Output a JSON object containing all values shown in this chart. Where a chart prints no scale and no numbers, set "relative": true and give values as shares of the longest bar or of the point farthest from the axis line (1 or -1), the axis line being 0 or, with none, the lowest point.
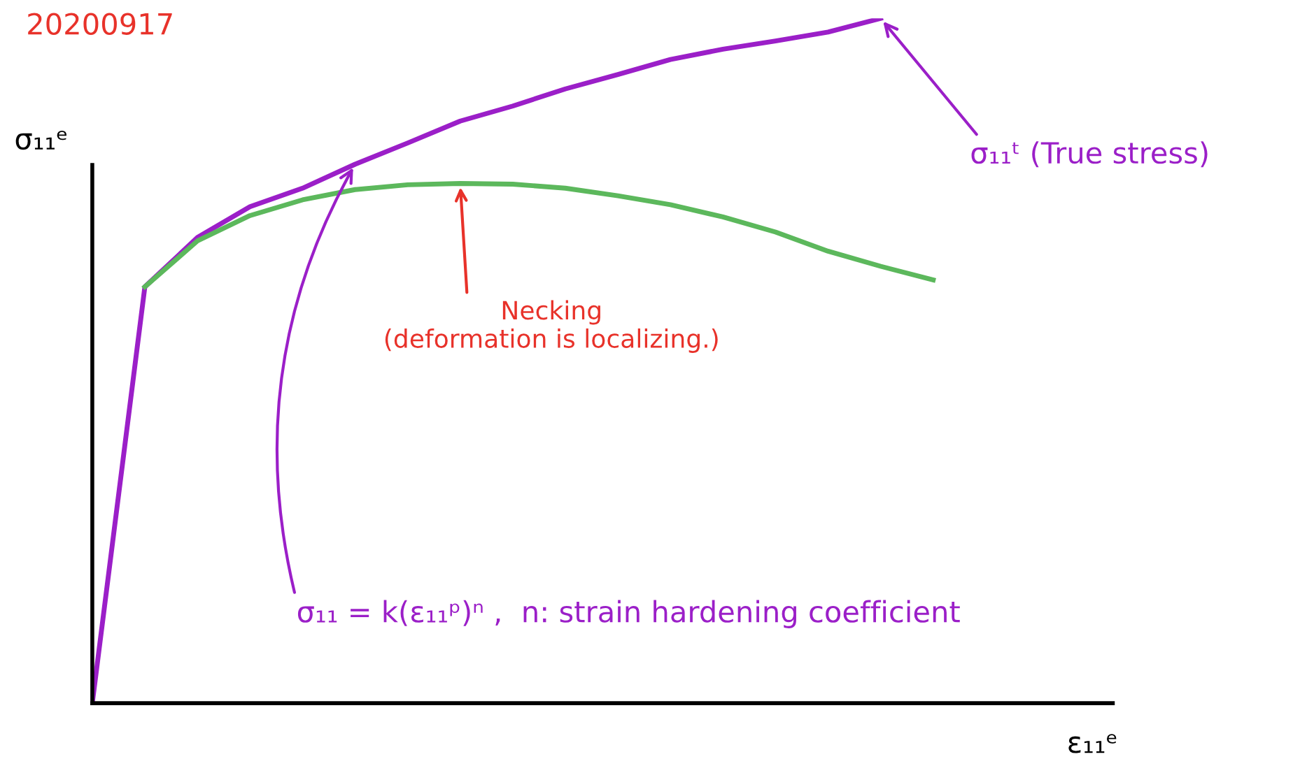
{
  "chart_data": {
    "type": "line",
    "relative": true,
    "title": "20200917",
    "xlabel": "ε₁₁ᵉ",
    "ylabel": "σ₁₁ᵉ",
    "legend": false,
    "marker": "none",
    "line_style": "solid",
    "categories": [
      null,
      null,
      null,
      null,
      null,
      null,
      null,
      null,
      null,
      null,
      null,
      null,
      null,
      null,
      null,
      null,
      null
    ],
    "series": [
      {
        "color": "#9b1fc8",
        "values": [
          0,
          0.608,
          0.68,
          0.725,
          0.752,
          0.787,
          0.818,
          0.85,
          0.872,
          0.897,
          0.918,
          0.94,
          0.955,
          0.967,
          0.98,
          1.0,
          null
        ]
      },
      {
        "color": "#5cb85c",
        "values": [
          null,
          0.608,
          0.675,
          0.712,
          0.735,
          0.75,
          0.757,
          0.759,
          0.758,
          0.752,
          0.741,
          0.728,
          0.71,
          0.688,
          0.66,
          0.638,
          0.618
        ]
      }
    ],
    "annotations": [
      "σ₁₁ᵗ (True stress)",
      "Necking\n(deformation is localizing.)",
      "σ₁₁ = k(ε₁₁ᵖ)ⁿ ,  n: strain hardening coefficient"
    ]
  }
}
